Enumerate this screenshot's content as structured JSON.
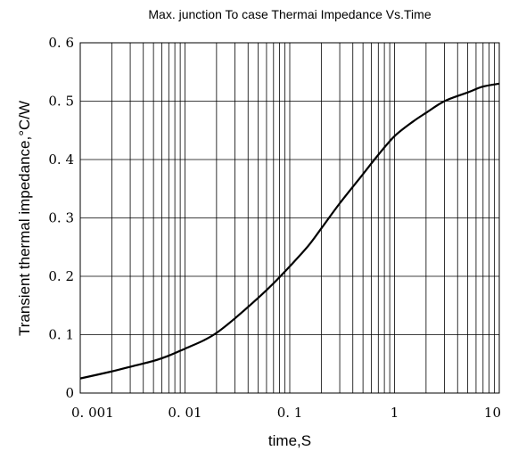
{
  "chart_data": {
    "type": "line",
    "title": "Max. junction To case Thermai Impedance Vs.Time",
    "xlabel": "time,S",
    "ylabel": "Transient thermal impedance,°C/W",
    "x_scale": "log",
    "xlim": [
      0.001,
      10
    ],
    "ylim": [
      0,
      0.6
    ],
    "x_ticks": [
      0.001,
      0.01,
      0.1,
      1,
      10
    ],
    "x_tick_labels": [
      "0. 001",
      "0. 01",
      "0. 1",
      "1",
      "10"
    ],
    "y_ticks": [
      0,
      0.1,
      0.2,
      0.3,
      0.4,
      0.5,
      0.6
    ],
    "y_tick_labels": [
      "0",
      "0. 1",
      "0. 2",
      "0. 3",
      "0. 4",
      "0. 5",
      "0. 6"
    ],
    "grid": true,
    "series": [
      {
        "color": "#000000",
        "x": [
          0.001,
          0.002,
          0.003,
          0.005,
          0.007,
          0.01,
          0.015,
          0.02,
          0.03,
          0.05,
          0.07,
          0.1,
          0.15,
          0.2,
          0.3,
          0.5,
          0.7,
          1,
          1.5,
          2,
          3,
          5,
          7,
          10
        ],
        "y": [
          0.025,
          0.037,
          0.045,
          0.055,
          0.064,
          0.076,
          0.09,
          0.103,
          0.128,
          0.163,
          0.188,
          0.217,
          0.252,
          0.282,
          0.325,
          0.375,
          0.408,
          0.44,
          0.465,
          0.48,
          0.5,
          0.515,
          0.525,
          0.53
        ]
      }
    ]
  }
}
